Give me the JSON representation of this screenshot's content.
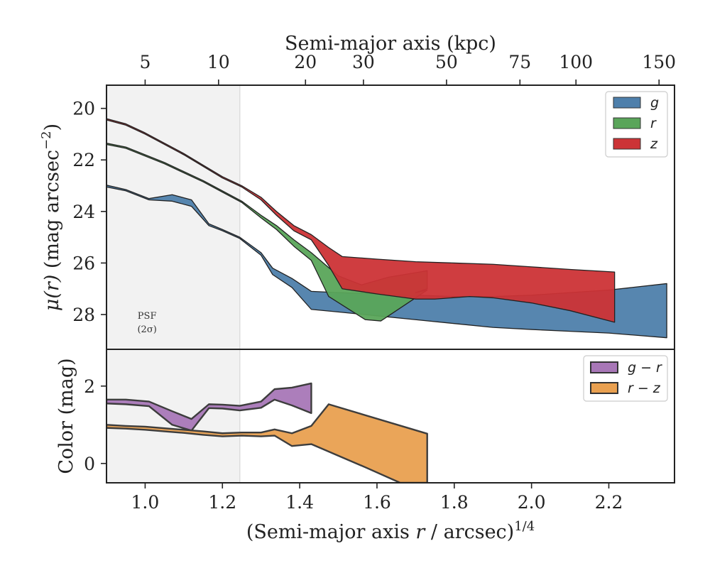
{
  "chart_data": [
    {
      "type": "area",
      "panel": "surface-brightness",
      "xlabel": "(Semi-major axis r / arcsec)",
      "xlabel_italic_part": "r",
      "xlabel_exponent": "1/4",
      "ylabel": "μ(r) (mag arcsec⁻²)",
      "ylabel_prefix": "μ(r)",
      "ylabel_main": " (mag arcsec",
      "ylabel_exponent": "−2",
      "ylabel_suffix": ")",
      "top_xlabel": "Semi-major axis (kpc)",
      "top_xticks": [
        {
          "kpc": 5,
          "x14": 1.0,
          "label": "5"
        },
        {
          "kpc": 10,
          "x14": 1.19,
          "label": "10"
        },
        {
          "kpc": 20,
          "x14": 1.415,
          "label": "20"
        },
        {
          "kpc": 30,
          "x14": 1.565,
          "label": "30"
        },
        {
          "kpc": 50,
          "x14": 1.78,
          "label": "50"
        },
        {
          "kpc": 75,
          "x14": 1.97,
          "label": "75"
        },
        {
          "kpc": 100,
          "x14": 2.115,
          "label": "100"
        },
        {
          "kpc": 150,
          "x14": 2.33,
          "label": "150"
        }
      ],
      "xlim": [
        0.9,
        2.37
      ],
      "ylim": [
        29.35,
        19.1
      ],
      "xticks": [
        1.0,
        1.2,
        1.4,
        1.6,
        1.8,
        2.0,
        2.2
      ],
      "xtick_labels": [
        "1.0",
        "1.2",
        "1.4",
        "1.6",
        "1.8",
        "2.0",
        "2.2"
      ],
      "yticks": [
        20,
        22,
        24,
        26,
        28
      ],
      "ytick_labels": [
        "20",
        "22",
        "24",
        "26",
        "28"
      ],
      "psf_region": {
        "x_max": 1.245,
        "label_line1": "PSF",
        "label_line2": "(2σ)"
      },
      "legend": {
        "placement": "top-right",
        "entries": [
          "g",
          "r",
          "z"
        ]
      },
      "series": [
        {
          "name": "g",
          "color": "#4e7fab",
          "upper": [
            [
              0.9,
              22.98
            ],
            [
              0.95,
              23.15
            ],
            [
              1.01,
              23.5
            ],
            [
              1.07,
              23.35
            ],
            [
              1.12,
              23.55
            ],
            [
              1.165,
              24.48
            ],
            [
              1.2,
              24.7
            ],
            [
              1.245,
              25.0
            ],
            [
              1.3,
              25.6
            ],
            [
              1.33,
              26.2
            ],
            [
              1.38,
              26.6
            ],
            [
              1.43,
              27.1
            ],
            [
              1.5,
              27.15
            ],
            [
              1.6,
              27.2
            ],
            [
              1.7,
              27.25
            ],
            [
              1.8,
              27.3
            ],
            [
              1.9,
              27.3
            ],
            [
              2.0,
              27.25
            ],
            [
              2.1,
              27.15
            ],
            [
              2.2,
              27.05
            ],
            [
              2.35,
              26.8
            ]
          ],
          "lower": [
            [
              0.9,
              23.05
            ],
            [
              0.95,
              23.2
            ],
            [
              1.01,
              23.55
            ],
            [
              1.07,
              23.6
            ],
            [
              1.12,
              23.8
            ],
            [
              1.165,
              24.55
            ],
            [
              1.2,
              24.75
            ],
            [
              1.245,
              25.05
            ],
            [
              1.3,
              25.7
            ],
            [
              1.33,
              26.45
            ],
            [
              1.38,
              26.95
            ],
            [
              1.43,
              27.8
            ],
            [
              1.5,
              27.9
            ],
            [
              1.6,
              28.05
            ],
            [
              1.7,
              28.2
            ],
            [
              1.8,
              28.35
            ],
            [
              1.9,
              28.5
            ],
            [
              2.0,
              28.58
            ],
            [
              2.1,
              28.65
            ],
            [
              2.2,
              28.72
            ],
            [
              2.35,
              28.9
            ]
          ]
        },
        {
          "name": "r",
          "color": "#5aa55a",
          "upper": [
            [
              0.9,
              21.35
            ],
            [
              0.95,
              21.5
            ],
            [
              1.0,
              21.8
            ],
            [
              1.05,
              22.1
            ],
            [
              1.1,
              22.45
            ],
            [
              1.15,
              22.8
            ],
            [
              1.2,
              23.2
            ],
            [
              1.25,
              23.6
            ],
            [
              1.3,
              24.15
            ],
            [
              1.34,
              24.55
            ],
            [
              1.385,
              25.1
            ],
            [
              1.43,
              25.6
            ],
            [
              1.5,
              26.5
            ],
            [
              1.56,
              26.85
            ],
            [
              1.63,
              26.55
            ],
            [
              1.73,
              26.3
            ],
            [
              1.73,
              27.0
            ],
            [
              1.7,
              27.15
            ]
          ],
          "lower": [
            [
              0.9,
              21.4
            ],
            [
              0.95,
              21.55
            ],
            [
              1.0,
              21.85
            ],
            [
              1.05,
              22.15
            ],
            [
              1.1,
              22.5
            ],
            [
              1.15,
              22.85
            ],
            [
              1.2,
              23.25
            ],
            [
              1.25,
              23.65
            ],
            [
              1.3,
              24.25
            ],
            [
              1.34,
              24.7
            ],
            [
              1.385,
              25.35
            ],
            [
              1.43,
              25.9
            ],
            [
              1.475,
              27.3
            ],
            [
              1.57,
              28.2
            ],
            [
              1.61,
              28.25
            ],
            [
              1.73,
              27.05
            ]
          ]
        },
        {
          "name": "z",
          "color": "#cc3336",
          "upper": [
            [
              0.9,
              20.4
            ],
            [
              0.95,
              20.6
            ],
            [
              1.0,
              20.95
            ],
            [
              1.05,
              21.35
            ],
            [
              1.1,
              21.75
            ],
            [
              1.15,
              22.2
            ],
            [
              1.2,
              22.65
            ],
            [
              1.25,
              23.0
            ],
            [
              1.3,
              23.45
            ],
            [
              1.34,
              24.0
            ],
            [
              1.385,
              24.55
            ],
            [
              1.43,
              24.9
            ],
            [
              1.475,
              25.4
            ],
            [
              1.51,
              25.75
            ],
            [
              1.6,
              25.85
            ],
            [
              1.7,
              25.95
            ],
            [
              1.8,
              26.0
            ],
            [
              1.9,
              26.05
            ],
            [
              2.0,
              26.15
            ],
            [
              2.1,
              26.25
            ],
            [
              2.215,
              26.35
            ]
          ],
          "lower": [
            [
              0.9,
              20.45
            ],
            [
              0.95,
              20.65
            ],
            [
              1.0,
              21.0
            ],
            [
              1.05,
              21.4
            ],
            [
              1.1,
              21.8
            ],
            [
              1.15,
              22.25
            ],
            [
              1.2,
              22.7
            ],
            [
              1.25,
              23.05
            ],
            [
              1.3,
              23.55
            ],
            [
              1.34,
              24.15
            ],
            [
              1.385,
              24.75
            ],
            [
              1.43,
              25.1
            ],
            [
              1.475,
              26.1
            ],
            [
              1.51,
              27.0
            ],
            [
              1.6,
              27.2
            ],
            [
              1.7,
              27.4
            ],
            [
              1.75,
              27.4
            ],
            [
              1.84,
              27.3
            ],
            [
              1.9,
              27.35
            ],
            [
              2.0,
              27.55
            ],
            [
              2.1,
              27.85
            ],
            [
              2.215,
              28.3
            ]
          ]
        }
      ]
    },
    {
      "type": "area",
      "panel": "color",
      "ylabel": "Color (mag)",
      "xlim": [
        0.9,
        2.37
      ],
      "ylim": [
        -0.5,
        2.95
      ],
      "yticks": [
        0,
        2
      ],
      "ytick_labels": [
        "0",
        "2"
      ],
      "legend": {
        "placement": "top-right",
        "entries": [
          "g − r",
          "r − z"
        ]
      },
      "series": [
        {
          "name": "g − r",
          "color": "#a877b7",
          "upper": [
            [
              0.9,
              1.65
            ],
            [
              0.95,
              1.65
            ],
            [
              1.01,
              1.6
            ],
            [
              1.07,
              1.35
            ],
            [
              1.12,
              1.15
            ],
            [
              1.165,
              1.53
            ],
            [
              1.2,
              1.52
            ],
            [
              1.245,
              1.49
            ],
            [
              1.3,
              1.6
            ],
            [
              1.335,
              1.92
            ],
            [
              1.38,
              1.96
            ],
            [
              1.43,
              2.07
            ]
          ],
          "lower": [
            [
              0.9,
              1.55
            ],
            [
              0.95,
              1.53
            ],
            [
              1.01,
              1.48
            ],
            [
              1.07,
              1.0
            ],
            [
              1.12,
              0.85
            ],
            [
              1.165,
              1.43
            ],
            [
              1.2,
              1.42
            ],
            [
              1.245,
              1.37
            ],
            [
              1.3,
              1.44
            ],
            [
              1.335,
              1.65
            ],
            [
              1.38,
              1.5
            ],
            [
              1.43,
              1.3
            ]
          ]
        },
        {
          "name": "r − z",
          "color": "#e9a050",
          "upper": [
            [
              0.9,
              1.0
            ],
            [
              0.95,
              0.97
            ],
            [
              1.0,
              0.95
            ],
            [
              1.05,
              0.91
            ],
            [
              1.1,
              0.87
            ],
            [
              1.15,
              0.83
            ],
            [
              1.2,
              0.78
            ],
            [
              1.25,
              0.8
            ],
            [
              1.3,
              0.8
            ],
            [
              1.335,
              0.88
            ],
            [
              1.38,
              0.78
            ],
            [
              1.43,
              0.97
            ],
            [
              1.475,
              1.53
            ],
            [
              1.73,
              0.77
            ]
          ],
          "lower": [
            [
              0.9,
              0.92
            ],
            [
              0.95,
              0.9
            ],
            [
              1.0,
              0.87
            ],
            [
              1.05,
              0.83
            ],
            [
              1.1,
              0.79
            ],
            [
              1.15,
              0.74
            ],
            [
              1.2,
              0.7
            ],
            [
              1.25,
              0.72
            ],
            [
              1.3,
              0.7
            ],
            [
              1.335,
              0.72
            ],
            [
              1.38,
              0.45
            ],
            [
              1.43,
              0.5
            ],
            [
              1.5,
              0.2
            ],
            [
              1.57,
              -0.1
            ],
            [
              1.66,
              -0.5
            ],
            [
              1.73,
              -0.5
            ]
          ]
        }
      ]
    }
  ]
}
